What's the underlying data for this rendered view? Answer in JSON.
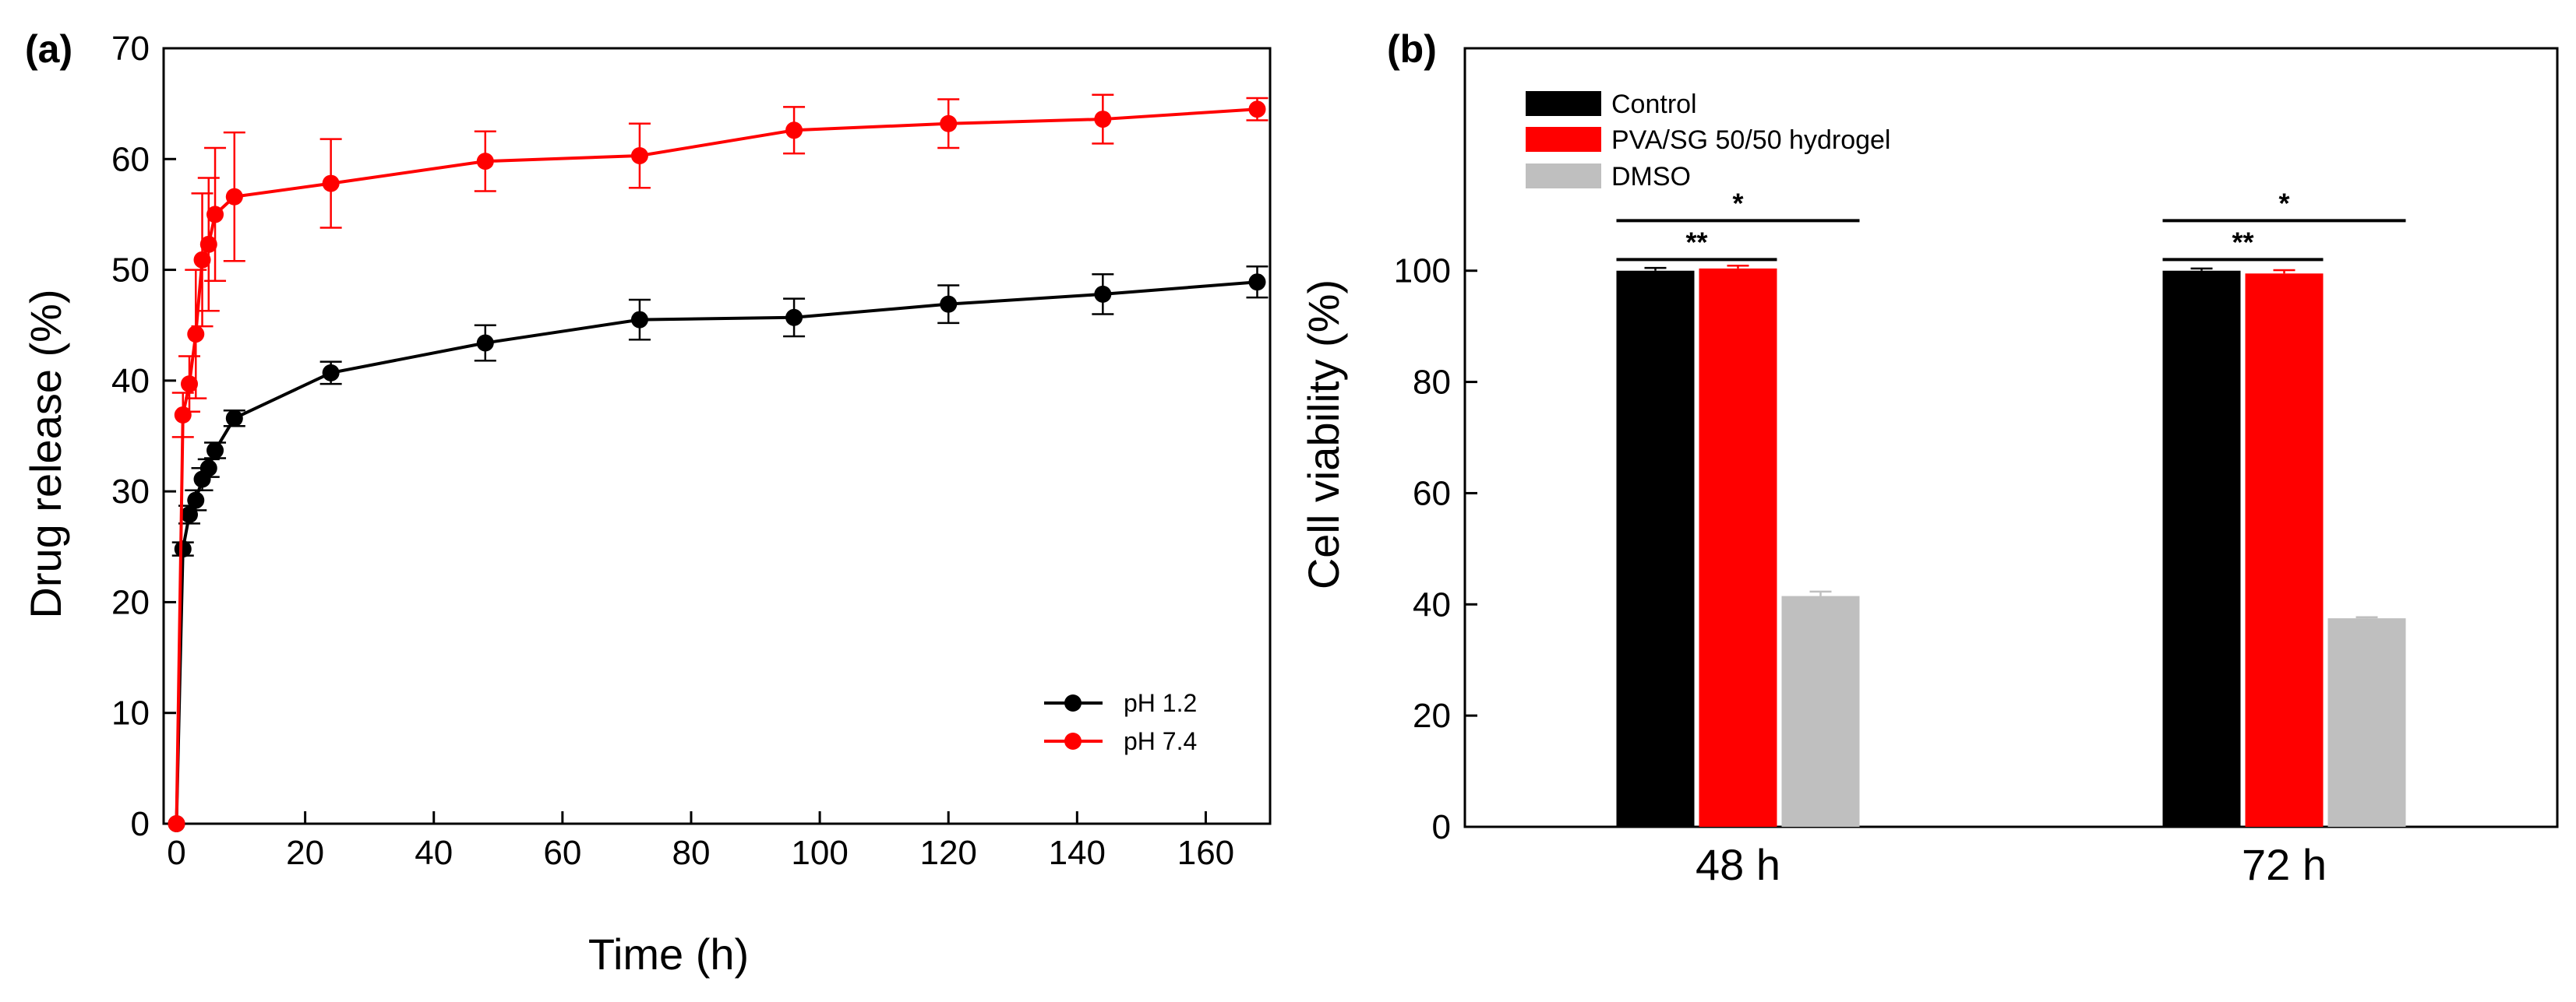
{
  "chart_data": [
    {
      "type": "line",
      "panel": "(a)",
      "title": "",
      "xlabel": "Time (h)",
      "ylabel": "Drug release (%)",
      "xlim": [
        -2,
        170
      ],
      "ylim": [
        0,
        70
      ],
      "xticks": [
        0,
        20,
        40,
        60,
        80,
        100,
        120,
        140,
        160
      ],
      "yticks": [
        0,
        10,
        20,
        30,
        40,
        50,
        60,
        70
      ],
      "legend_position": "bottom-right",
      "series": [
        {
          "name": "pH 1.2",
          "color": "#000000",
          "x": [
            0,
            1,
            2,
            3,
            4,
            5,
            6,
            9,
            24,
            48,
            72,
            96,
            120,
            144,
            168
          ],
          "y": [
            0,
            24.8,
            27.9,
            29.2,
            31.1,
            32.1,
            33.7,
            36.6,
            40.7,
            43.4,
            45.5,
            45.7,
            46.9,
            47.8,
            48.9
          ],
          "err": [
            0,
            0.6,
            0.8,
            0.9,
            1.0,
            0.8,
            0.7,
            0.7,
            1.0,
            1.6,
            1.8,
            1.7,
            1.7,
            1.8,
            1.4
          ]
        },
        {
          "name": "pH 7.4",
          "color": "#ff0000",
          "x": [
            0,
            1,
            2,
            3,
            4,
            5,
            6,
            9,
            24,
            48,
            72,
            96,
            120,
            144,
            168
          ],
          "y": [
            0,
            36.9,
            39.7,
            44.2,
            50.9,
            52.3,
            55.0,
            56.6,
            57.8,
            59.8,
            60.3,
            62.6,
            63.2,
            63.6,
            64.5
          ],
          "err": [
            0,
            2.0,
            2.5,
            5.8,
            6.0,
            6.0,
            6.0,
            5.8,
            4.0,
            2.7,
            2.9,
            2.1,
            2.2,
            2.2,
            1.0
          ]
        }
      ]
    },
    {
      "type": "bar",
      "panel": "(b)",
      "title": "",
      "xlabel": "",
      "ylabel": "Cell viability (%)",
      "ylim": [
        0,
        140
      ],
      "yticks": [
        0,
        20,
        40,
        60,
        80,
        100
      ],
      "categories": [
        "48 h",
        "72 h"
      ],
      "legend_position": "top-left",
      "series": [
        {
          "name": "Control",
          "color": "#000000",
          "values": [
            100,
            100
          ],
          "err": [
            0.5,
            0.4
          ]
        },
        {
          "name": "PVA/SG 50/50 hydrogel",
          "color": "#ff0000",
          "values": [
            100.4,
            99.5
          ],
          "err": [
            0.5,
            0.6
          ]
        },
        {
          "name": "DMSO",
          "color": "#bfbfbf",
          "values": [
            41.5,
            37.5
          ],
          "err": [
            0.8,
            0.2
          ]
        }
      ],
      "significance": [
        {
          "category": "48 h",
          "compare": [
            "Control",
            "DMSO"
          ],
          "label": "*",
          "level": 109
        },
        {
          "category": "48 h",
          "compare": [
            "Control",
            "PVA/SG 50/50 hydrogel"
          ],
          "label": "**",
          "level": 102
        },
        {
          "category": "72 h",
          "compare": [
            "Control",
            "DMSO"
          ],
          "label": "*",
          "level": 109
        },
        {
          "category": "72 h",
          "compare": [
            "Control",
            "PVA/SG 50/50 hydrogel"
          ],
          "label": "**",
          "level": 102
        }
      ]
    }
  ]
}
